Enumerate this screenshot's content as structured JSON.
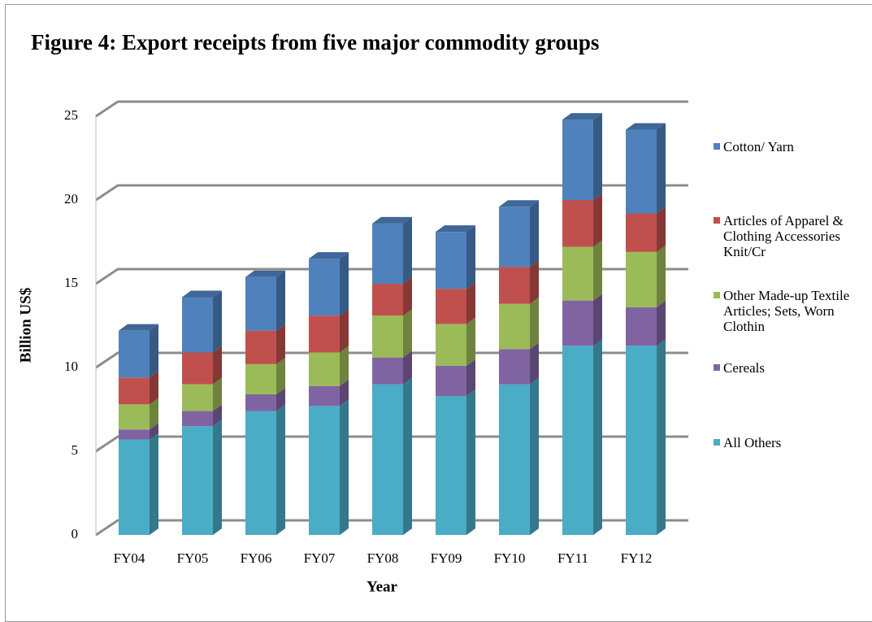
{
  "chart_data": {
    "type": "bar",
    "stacked": true,
    "title": "Figure 4: Export receipts from five major commodity groups",
    "x_label": "Year",
    "y_label": "Billion US$",
    "categories": [
      "FY04",
      "FY05",
      "FY06",
      "FY07",
      "FY08",
      "FY09",
      "FY10",
      "FY11",
      "FY12"
    ],
    "series": [
      {
        "name": "All Others",
        "color": "#4bacc6",
        "values": [
          5.7,
          6.5,
          7.4,
          7.7,
          9.0,
          8.3,
          9.0,
          11.3,
          11.3
        ]
      },
      {
        "name": "Cereals",
        "color": "#8064a2",
        "values": [
          0.6,
          0.9,
          1.0,
          1.2,
          1.6,
          1.8,
          2.1,
          2.7,
          2.3
        ]
      },
      {
        "name": "Other Made-up Textile Articles; Sets, Worn Clothin",
        "color": "#9bbb59",
        "values": [
          1.5,
          1.6,
          1.8,
          2.0,
          2.5,
          2.5,
          2.7,
          3.2,
          3.3
        ]
      },
      {
        "name": "Articles of Apparel & Clothing Accessories Knit/Cr",
        "color": "#c0504d",
        "values": [
          1.6,
          1.9,
          2.0,
          2.2,
          1.9,
          2.1,
          2.2,
          2.8,
          2.3
        ]
      },
      {
        "name": "Cotton/ Yarn",
        "color": "#4f81bd",
        "values": [
          2.8,
          3.3,
          3.2,
          3.4,
          3.6,
          3.4,
          3.6,
          4.8,
          5.0
        ]
      }
    ],
    "ylim": [
      0,
      25
    ],
    "yticks": [
      0,
      5,
      10,
      15,
      20,
      25
    ],
    "grid": true,
    "legend": "right"
  }
}
